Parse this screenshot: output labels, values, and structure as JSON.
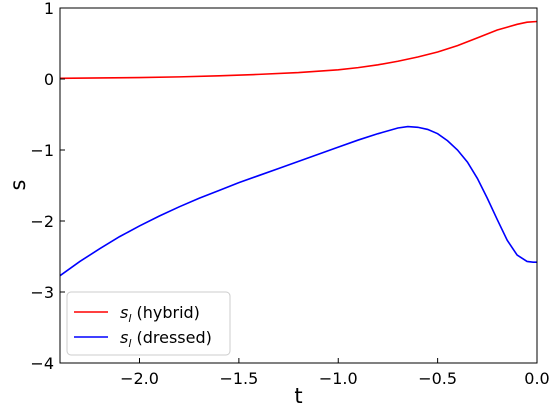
{
  "chart_data": {
    "type": "line",
    "title": "",
    "xlabel": "t",
    "ylabel": "s",
    "xlim": [
      -2.4,
      0.0
    ],
    "ylim": [
      -4,
      1
    ],
    "xticks": [
      -2.0,
      -1.5,
      -1.0,
      -0.5,
      0.0
    ],
    "xtick_labels": [
      "−2.0",
      "−1.5",
      "−1.0",
      "−0.5",
      "0.0"
    ],
    "yticks": [
      -4,
      -3,
      -2,
      -1,
      0,
      1
    ],
    "ytick_labels": [
      "−4",
      "−3",
      "−2",
      "−1",
      "0",
      "1"
    ],
    "grid": false,
    "legend_position": "lower-left",
    "series": [
      {
        "name_main": "s",
        "name_sub": "l",
        "name_rest": " (hybrid)",
        "color": "#ff0000",
        "x": [
          -2.4,
          -2.2,
          -2.0,
          -1.8,
          -1.6,
          -1.4,
          -1.2,
          -1.0,
          -0.9,
          -0.8,
          -0.7,
          -0.6,
          -0.5,
          -0.4,
          -0.3,
          -0.2,
          -0.1,
          -0.05,
          0.0
        ],
        "y": [
          0.01,
          0.015,
          0.02,
          0.03,
          0.045,
          0.065,
          0.09,
          0.13,
          0.16,
          0.2,
          0.25,
          0.31,
          0.38,
          0.47,
          0.58,
          0.69,
          0.77,
          0.8,
          0.81
        ]
      },
      {
        "name_main": "s",
        "name_sub": "l",
        "name_rest": " (dressed)",
        "color": "#0000ff",
        "x": [
          -2.4,
          -2.3,
          -2.2,
          -2.1,
          -2.0,
          -1.9,
          -1.8,
          -1.7,
          -1.6,
          -1.5,
          -1.4,
          -1.3,
          -1.2,
          -1.1,
          -1.0,
          -0.9,
          -0.8,
          -0.7,
          -0.65,
          -0.6,
          -0.55,
          -0.5,
          -0.45,
          -0.4,
          -0.35,
          -0.3,
          -0.25,
          -0.2,
          -0.15,
          -0.1,
          -0.05,
          -0.02,
          0.0
        ],
        "y": [
          -2.77,
          -2.57,
          -2.39,
          -2.22,
          -2.07,
          -1.93,
          -1.8,
          -1.68,
          -1.57,
          -1.46,
          -1.36,
          -1.26,
          -1.16,
          -1.06,
          -0.96,
          -0.86,
          -0.77,
          -0.69,
          -0.67,
          -0.68,
          -0.71,
          -0.77,
          -0.87,
          -1.0,
          -1.17,
          -1.4,
          -1.68,
          -1.98,
          -2.27,
          -2.48,
          -2.57,
          -2.58,
          -2.58
        ]
      }
    ]
  }
}
